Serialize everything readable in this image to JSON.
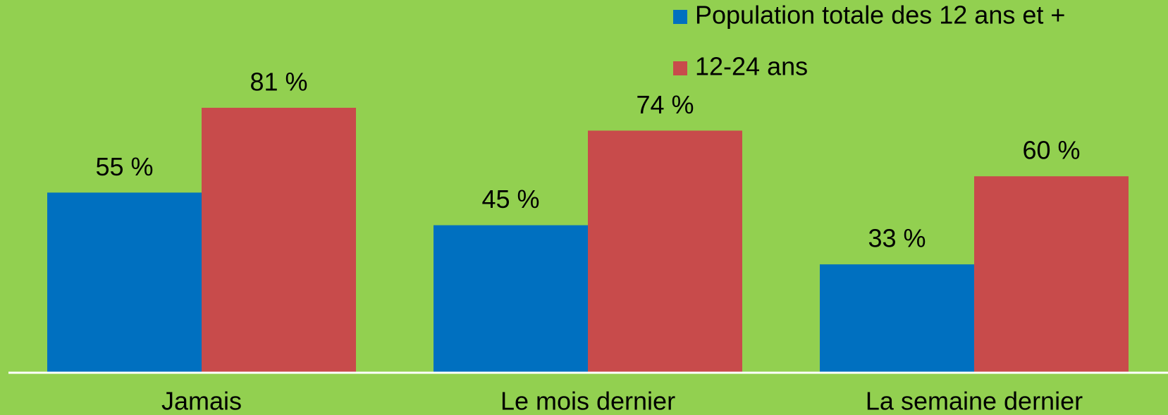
{
  "chart_data": {
    "type": "bar",
    "categories": [
      "Jamais",
      "Le mois dernier",
      "La semaine dernier"
    ],
    "series": [
      {
        "name": "Population totale des 12 ans et +",
        "color": "#0070c0",
        "values": [
          55,
          45,
          33
        ],
        "value_labels": [
          "55 %",
          "45 %",
          "33 %"
        ]
      },
      {
        "name": "12-24 ans",
        "color": "#c84b4b",
        "values": [
          81,
          74,
          60
        ],
        "value_labels": [
          "81 %",
          "74 %",
          "60 %"
        ]
      }
    ],
    "ylim": [
      0,
      100
    ]
  }
}
